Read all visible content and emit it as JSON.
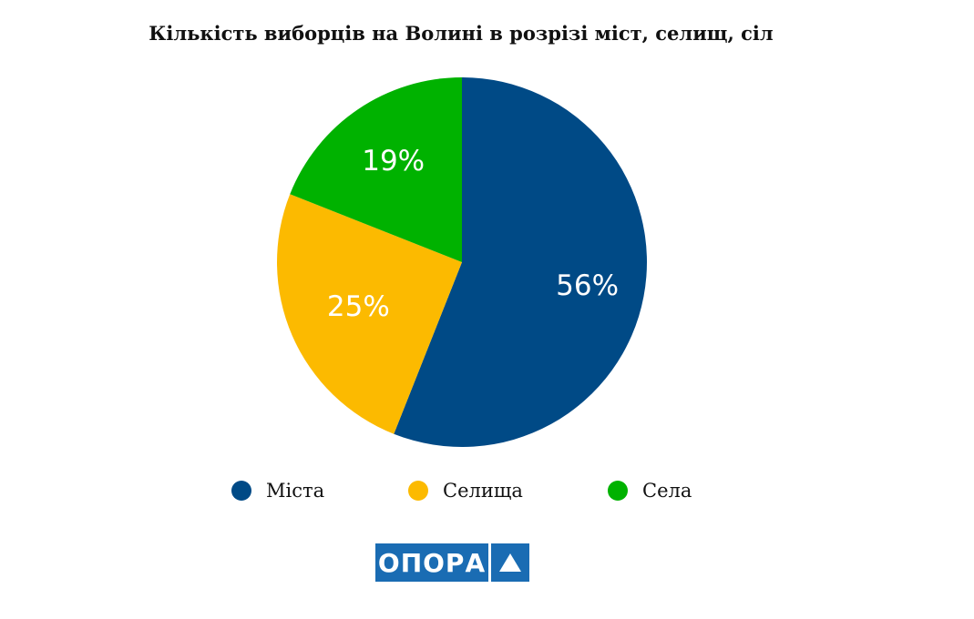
{
  "chart_data": {
    "type": "pie",
    "title": "Кількість виборців на Волині в розрізі міст, селищ, сіл",
    "categories": [
      "Міста",
      "Селища",
      "Села"
    ],
    "values": [
      56,
      25,
      19
    ],
    "labels": [
      "56%",
      "25%",
      "19%"
    ],
    "colors": [
      "#004a86",
      "#fcba00",
      "#00b200"
    ],
    "legend_position": "bottom"
  },
  "logo": {
    "text": "ОПОРА"
  }
}
